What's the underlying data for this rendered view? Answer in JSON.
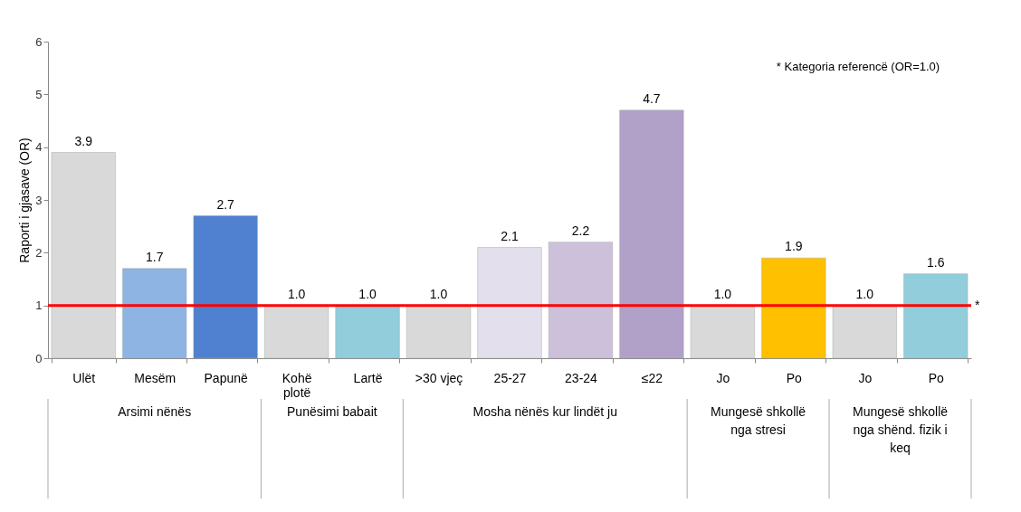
{
  "chart_data": {
    "type": "bar",
    "ylabel": "Raporti i gjasave (OR)",
    "categories": [
      "Ulët",
      "Mesëm",
      "Papunë",
      "Kohë plotë",
      "Lartë",
      ">30 vjeç",
      "25-27",
      "23-24",
      "≤22",
      "Jo",
      "Po",
      "Jo",
      "Po"
    ],
    "values": [
      3.9,
      1.7,
      2.7,
      1.0,
      1.0,
      1.0,
      2.1,
      2.2,
      4.7,
      1.0,
      1.9,
      1.0,
      1.6
    ],
    "colors": [
      "#d9d9d9",
      "#8eb4e3",
      "#4f81d0",
      "#d9d9d9",
      "#92cddc",
      "#d9d9d9",
      "#e4dfec",
      "#ccc0da",
      "#b1a0c7",
      "#d9d9d9",
      "#ffc000",
      "#d9d9d9",
      "#92cddc"
    ],
    "value_labels": [
      "3.9",
      "1.7",
      "2.7",
      "1.0",
      "1.0",
      "1.0",
      "2.1",
      "2.2",
      "4.7",
      "1.0",
      "1.9",
      "1.0",
      "1.6"
    ],
    "ylim": [
      0,
      6
    ],
    "yticks": [
      0,
      1,
      2,
      3,
      4,
      5,
      6
    ],
    "grid": false,
    "ref_lines": [
      {
        "axis": "y",
        "value": 1,
        "label": "*",
        "color": "#ff0000"
      }
    ],
    "annotations": [
      "* Kategoria referencë (OR=1.0)",
      "Arsimi nënës",
      "Punësimi babait",
      "Mosha nënës kur lindët ju",
      "Mungesë shkollë nga stresi",
      "Mungesë shkollë nga shënd. fizik i keq"
    ]
  }
}
